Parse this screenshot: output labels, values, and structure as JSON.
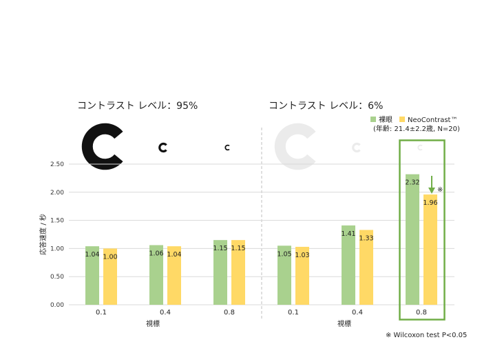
{
  "panels": {
    "left_heading": "コントラスト レベル：95%",
    "right_heading": "コントラスト レベル：6%",
    "left_xlabel": "視標",
    "right_xlabel": "視標"
  },
  "legend": {
    "items": [
      {
        "label": "裸眼",
        "color": "#a9d18e"
      },
      {
        "label": "NeoContrast™",
        "color": "#ffd966"
      }
    ],
    "note": "(年齢: 21.4±2.2歳, N=20)"
  },
  "footnote": "※ Wilcoxon test P<0.05",
  "significance_mark": "※",
  "colors": {
    "naked_eye": "#a9d18e",
    "neocontrast": "#ffd966",
    "highlight_box": "#70ad47",
    "arrow": "#70ad47",
    "grid": "#d9d9d9",
    "divider": "#bfbfbf"
  },
  "landolt_c_colors": {
    "high_contrast": "#111111",
    "low_contrast": "#ebebeb"
  },
  "chart_data": {
    "type": "bar",
    "title": "",
    "ylabel": "応答速度 / 秒",
    "ylim": [
      0,
      2.5
    ],
    "yticks": [
      "0.00",
      "0.50",
      "1.00",
      "1.50",
      "2.00",
      "2.50"
    ],
    "grid": true,
    "legend_position": "top-right",
    "groups": [
      {
        "heading": "コントラスト レベル：95%",
        "xlabel": "視標",
        "categories": [
          "0.1",
          "0.4",
          "0.8"
        ],
        "series": [
          {
            "name": "裸眼",
            "values": [
              1.04,
              1.06,
              1.15
            ]
          },
          {
            "name": "NeoContrast™",
            "values": [
              1.0,
              1.04,
              1.15
            ]
          }
        ]
      },
      {
        "heading": "コントラスト レベル：6%",
        "xlabel": "視標",
        "categories": [
          "0.1",
          "0.4",
          "0.8"
        ],
        "series": [
          {
            "name": "裸眼",
            "values": [
              1.05,
              1.41,
              2.32
            ]
          },
          {
            "name": "NeoContrast™",
            "values": [
              1.03,
              1.33,
              1.96
            ]
          }
        ],
        "annotation": "※"
      }
    ],
    "value_labels": [
      [
        "1.04",
        "1.00",
        "1.06",
        "1.04",
        "1.15",
        "1.15"
      ],
      [
        "1.05",
        "1.03",
        "1.41",
        "1.33",
        "2.32",
        "1.96"
      ]
    ]
  }
}
